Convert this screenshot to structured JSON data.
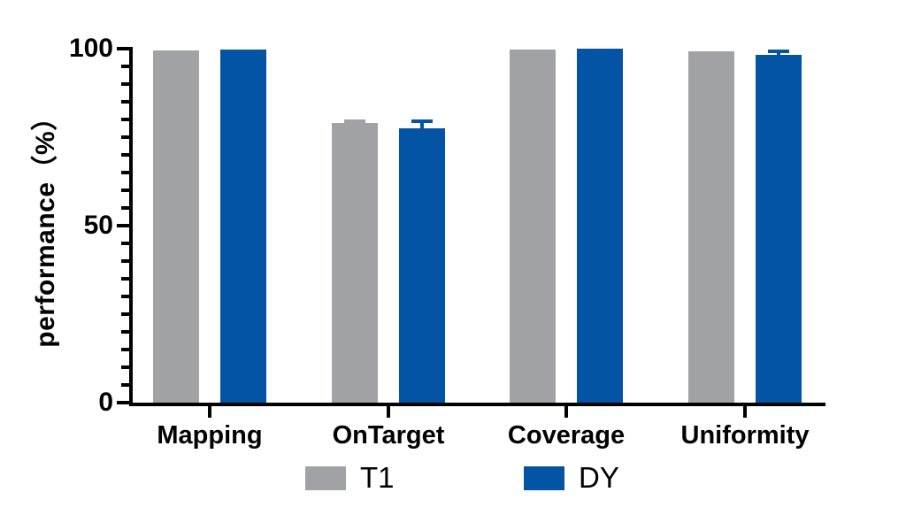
{
  "chart_data": {
    "type": "bar",
    "title": "",
    "categories": [
      "Mapping",
      "OnTarget",
      "Coverage",
      "Uniformity"
    ],
    "series": [
      {
        "name": "T1",
        "color": "#A1A2A6",
        "values": [
          99.5,
          79.0,
          99.8,
          99.2
        ],
        "errors": [
          0,
          0.5,
          0,
          0
        ]
      },
      {
        "name": "DY",
        "color": "#0454A5",
        "values": [
          99.7,
          77.4,
          99.9,
          98.3
        ],
        "errors": [
          0,
          2.0,
          0,
          1.0
        ]
      }
    ],
    "xlabel": "",
    "ylabel": "performance（%）",
    "ylim": [
      0,
      100
    ],
    "yticks": [
      0,
      50,
      100
    ],
    "ytick_labels": [
      "0",
      "50",
      "100"
    ],
    "minor_tick_step": 5,
    "grid": false,
    "legend_position": "bottom",
    "background_color": "#FFFFFF",
    "axis_color": "#000000"
  }
}
